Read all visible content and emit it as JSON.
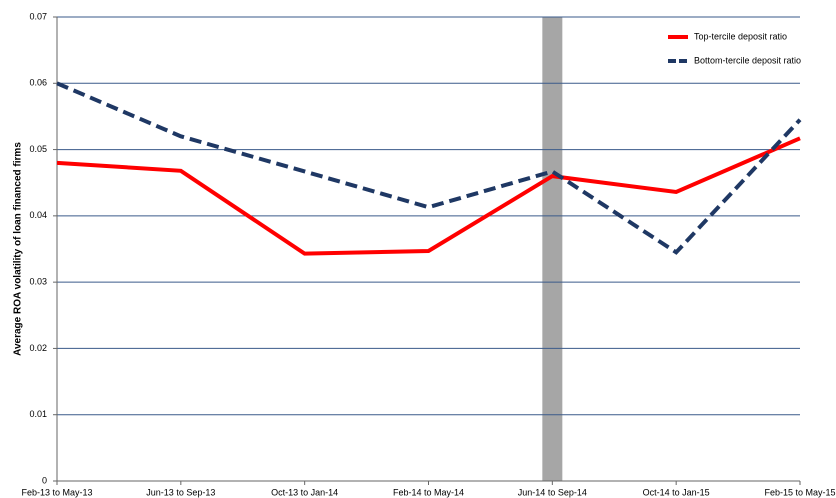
{
  "chart_data": {
    "type": "line",
    "y_label": "Average ROA volatility of loan financed firms",
    "categories": [
      "Feb-13 to May-13",
      "Jun-13 to Sep-13",
      "Oct-13 to Jan-14",
      "Feb-14 to May-14",
      "Jun-14 to Sep-14",
      "Oct-14 to Jan-15",
      "Feb-15 to May-15"
    ],
    "series": [
      {
        "name": "Top-tercile deposit ratio",
        "color": "#ff0000",
        "dash": false,
        "values": [
          0.048,
          0.0468,
          0.0343,
          0.0347,
          0.046,
          0.0436,
          0.0517
        ]
      },
      {
        "name": "Bottom-tercile deposit ratio",
        "color": "#1f3864",
        "dash": true,
        "values": [
          0.06,
          0.052,
          0.0467,
          0.0413,
          0.0467,
          0.0345,
          0.0545
        ]
      }
    ],
    "ylim": [
      0,
      0.07
    ],
    "yticks": [
      0,
      0.01,
      0.02,
      0.03,
      0.04,
      0.05,
      0.06,
      0.07
    ],
    "grid": true,
    "legend": "top-right"
  }
}
